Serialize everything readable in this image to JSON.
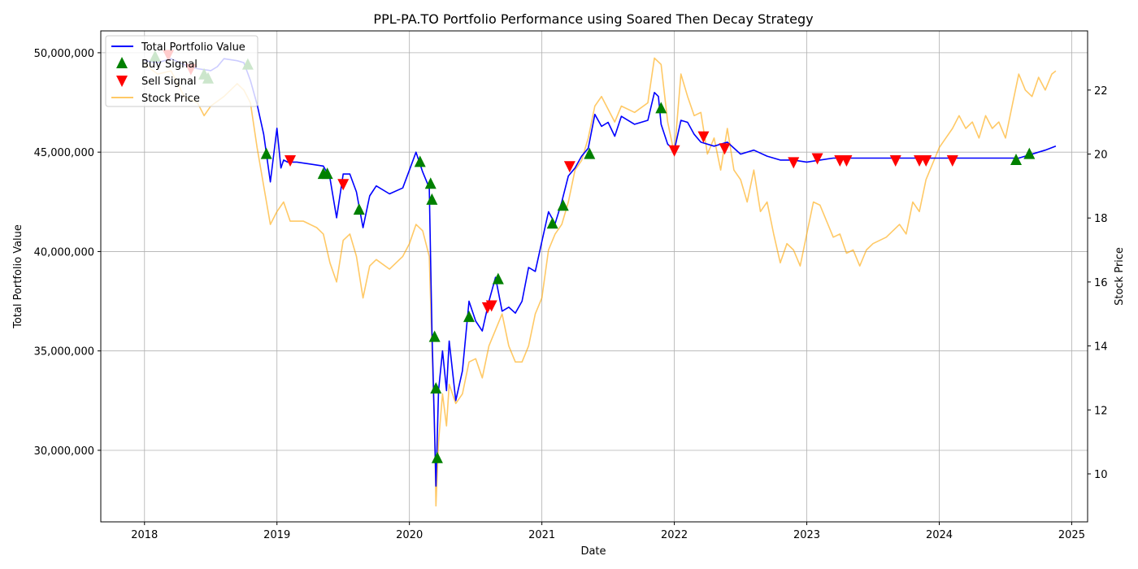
{
  "chart_data": {
    "type": "line",
    "title": "PPL-PA.TO Portfolio Performance using Soared Then Decay Strategy",
    "xlabel": "Date",
    "ylabel": "Total Portfolio Value",
    "ylabel_right": "Stock Price",
    "xlim": [
      2017.67,
      2025.12
    ],
    "ylim": [
      26400000,
      51100000
    ],
    "ylim_right": [
      8.5,
      23.85
    ],
    "grid": true,
    "legend_position": "upper-left",
    "x_ticks": [
      {
        "value": 2018,
        "label": "2018"
      },
      {
        "value": 2019,
        "label": "2019"
      },
      {
        "value": 2020,
        "label": "2020"
      },
      {
        "value": 2021,
        "label": "2021"
      },
      {
        "value": 2022,
        "label": "2022"
      },
      {
        "value": 2023,
        "label": "2023"
      },
      {
        "value": 2024,
        "label": "2024"
      },
      {
        "value": 2025,
        "label": "2025"
      }
    ],
    "y_ticks": [
      {
        "value": 30000000,
        "label": "30,000,000"
      },
      {
        "value": 35000000,
        "label": "35,000,000"
      },
      {
        "value": 40000000,
        "label": "40,000,000"
      },
      {
        "value": 45000000,
        "label": "45,000,000"
      },
      {
        "value": 50000000,
        "label": "50,000,000"
      }
    ],
    "y_ticks_right": [
      {
        "value": 10,
        "label": "10"
      },
      {
        "value": 12,
        "label": "12"
      },
      {
        "value": 14,
        "label": "14"
      },
      {
        "value": 16,
        "label": "16"
      },
      {
        "value": 18,
        "label": "18"
      },
      {
        "value": 20,
        "label": "20"
      },
      {
        "value": 22,
        "label": "22"
      }
    ],
    "series": [
      {
        "name": "Total Portfolio Value",
        "axis": "left",
        "color": "#0000ff",
        "x": [
          2018.0,
          2018.1,
          2018.2,
          2018.3,
          2018.4,
          2018.5,
          2018.55,
          2018.6,
          2018.7,
          2018.75,
          2018.8,
          2018.85,
          2018.9,
          2018.95,
          2019.0,
          2019.03,
          2019.05,
          2019.08,
          2019.15,
          2019.25,
          2019.35,
          2019.4,
          2019.45,
          2019.5,
          2019.55,
          2019.6,
          2019.65,
          2019.7,
          2019.75,
          2019.85,
          2019.95,
          2020.0,
          2020.05,
          2020.1,
          2020.15,
          2020.17,
          2020.19,
          2020.2,
          2020.22,
          2020.25,
          2020.28,
          2020.3,
          2020.35,
          2020.4,
          2020.45,
          2020.5,
          2020.55,
          2020.6,
          2020.65,
          2020.7,
          2020.75,
          2020.8,
          2020.85,
          2020.9,
          2020.95,
          2021.0,
          2021.05,
          2021.1,
          2021.15,
          2021.2,
          2021.25,
          2021.3,
          2021.35,
          2021.4,
          2021.45,
          2021.5,
          2021.55,
          2021.6,
          2021.7,
          2021.8,
          2021.85,
          2021.88,
          2021.9,
          2021.95,
          2022.0,
          2022.05,
          2022.1,
          2022.15,
          2022.2,
          2022.3,
          2022.4,
          2022.5,
          2022.6,
          2022.7,
          2022.8,
          2022.9,
          2023.0,
          2023.2,
          2023.4,
          2023.6,
          2023.8,
          2024.0,
          2024.2,
          2024.4,
          2024.6,
          2024.7,
          2024.8,
          2024.88
        ],
        "values": [
          49600000,
          49500000,
          49700000,
          49400000,
          49200000,
          49100000,
          49300000,
          49700000,
          49600000,
          49500000,
          48600000,
          47400000,
          45900000,
          43500000,
          46200000,
          44200000,
          44600000,
          44500000,
          44500000,
          44400000,
          44300000,
          43700000,
          41700000,
          43900000,
          43900000,
          43000000,
          41200000,
          42800000,
          43300000,
          42900000,
          43200000,
          44100000,
          45000000,
          44000000,
          43200000,
          36000000,
          31000000,
          28200000,
          33000000,
          35000000,
          33000000,
          35500000,
          32500000,
          34000000,
          37500000,
          36500000,
          36000000,
          37500000,
          38700000,
          37000000,
          37200000,
          36900000,
          37500000,
          39200000,
          39000000,
          40500000,
          42000000,
          41400000,
          42500000,
          43800000,
          44200000,
          44800000,
          45200000,
          46900000,
          46300000,
          46500000,
          45800000,
          46800000,
          46400000,
          46600000,
          48000000,
          47800000,
          46400000,
          45400000,
          45100000,
          46600000,
          46500000,
          45900000,
          45500000,
          45300000,
          45500000,
          44900000,
          45100000,
          44800000,
          44600000,
          44600000,
          44500000,
          44700000,
          44700000,
          44700000,
          44700000,
          44700000,
          44700000,
          44700000,
          44700000,
          44900000,
          45100000,
          45300000
        ]
      },
      {
        "name": "Stock Price",
        "axis": "right",
        "color": "#ffa500",
        "x": [
          2018.0,
          2018.1,
          2018.2,
          2018.3,
          2018.4,
          2018.45,
          2018.5,
          2018.6,
          2018.7,
          2018.75,
          2018.8,
          2018.85,
          2018.9,
          2018.95,
          2019.0,
          2019.05,
          2019.1,
          2019.2,
          2019.3,
          2019.35,
          2019.4,
          2019.45,
          2019.5,
          2019.55,
          2019.6,
          2019.65,
          2019.7,
          2019.75,
          2019.85,
          2019.95,
          2020.0,
          2020.05,
          2020.1,
          2020.15,
          2020.17,
          2020.19,
          2020.2,
          2020.22,
          2020.25,
          2020.28,
          2020.3,
          2020.35,
          2020.4,
          2020.45,
          2020.5,
          2020.55,
          2020.6,
          2020.65,
          2020.7,
          2020.75,
          2020.8,
          2020.85,
          2020.9,
          2020.95,
          2021.0,
          2021.05,
          2021.1,
          2021.15,
          2021.2,
          2021.25,
          2021.3,
          2021.35,
          2021.4,
          2021.45,
          2021.5,
          2021.55,
          2021.6,
          2021.7,
          2021.8,
          2021.85,
          2021.9,
          2021.95,
          2022.0,
          2022.05,
          2022.1,
          2022.15,
          2022.2,
          2022.25,
          2022.3,
          2022.35,
          2022.4,
          2022.45,
          2022.5,
          2022.55,
          2022.6,
          2022.65,
          2022.7,
          2022.75,
          2022.8,
          2022.85,
          2022.9,
          2022.95,
          2023.0,
          2023.05,
          2023.1,
          2023.2,
          2023.25,
          2023.3,
          2023.35,
          2023.4,
          2023.45,
          2023.5,
          2023.6,
          2023.7,
          2023.75,
          2023.8,
          2023.85,
          2023.9,
          2024.0,
          2024.05,
          2024.1,
          2024.15,
          2024.2,
          2024.25,
          2024.3,
          2024.35,
          2024.4,
          2024.45,
          2024.5,
          2024.55,
          2024.6,
          2024.65,
          2024.7,
          2024.75,
          2024.8,
          2024.85,
          2024.88
        ],
        "values": [
          22.8,
          22.5,
          22.6,
          21.8,
          21.6,
          21.2,
          21.5,
          21.8,
          22.2,
          22.0,
          21.6,
          20.2,
          19.0,
          17.8,
          18.2,
          18.5,
          17.9,
          17.9,
          17.7,
          17.5,
          16.6,
          16.0,
          17.3,
          17.5,
          16.8,
          15.5,
          16.5,
          16.7,
          16.4,
          16.8,
          17.2,
          17.8,
          17.6,
          16.8,
          14.0,
          11.5,
          9.0,
          11.0,
          12.5,
          11.5,
          12.8,
          12.2,
          12.5,
          13.5,
          13.6,
          13.0,
          14.0,
          14.5,
          15.0,
          14.0,
          13.5,
          13.5,
          14.0,
          15.0,
          15.5,
          17.0,
          17.5,
          17.8,
          18.5,
          19.5,
          19.8,
          20.5,
          21.5,
          21.8,
          21.4,
          21.0,
          21.5,
          21.3,
          21.6,
          23.0,
          22.8,
          21.0,
          20.0,
          22.5,
          21.8,
          21.2,
          21.3,
          20.0,
          20.5,
          19.5,
          20.8,
          19.5,
          19.2,
          18.5,
          19.5,
          18.2,
          18.5,
          17.5,
          16.6,
          17.2,
          17.0,
          16.5,
          17.5,
          18.5,
          18.4,
          17.4,
          17.5,
          16.9,
          17.0,
          16.5,
          17.0,
          17.2,
          17.4,
          17.8,
          17.5,
          18.5,
          18.2,
          19.2,
          20.2,
          20.5,
          20.8,
          21.2,
          20.8,
          21.0,
          20.5,
          21.2,
          20.8,
          21.0,
          20.5,
          21.5,
          22.5,
          22.0,
          21.8,
          22.4,
          22.0,
          22.5,
          22.6
        ]
      }
    ],
    "markers": [
      {
        "name": "Buy Signal",
        "shape": "triangle-up",
        "color": "#008000",
        "x": [
          2018.08,
          2018.45,
          2018.48,
          2018.78,
          2018.92,
          2019.35,
          2019.38,
          2019.62,
          2020.08,
          2020.16,
          2020.17,
          2020.19,
          2020.2,
          2020.21,
          2020.45,
          2020.67,
          2021.08,
          2021.16,
          2021.36,
          2021.9,
          2024.58,
          2024.68
        ],
        "values": [
          49800000,
          48900000,
          48700000,
          49400000,
          44900000,
          43900000,
          43900000,
          42100000,
          44500000,
          43400000,
          42600000,
          35700000,
          33100000,
          29600000,
          36700000,
          38600000,
          41400000,
          42300000,
          44900000,
          47200000,
          44600000,
          44900000
        ]
      },
      {
        "name": "Sell Signal",
        "shape": "triangle-down",
        "color": "#ff0000",
        "x": [
          2018.18,
          2018.35,
          2019.1,
          2019.5,
          2020.59,
          2020.62,
          2021.21,
          2022.0,
          2022.22,
          2022.38,
          2022.9,
          2023.08,
          2023.25,
          2023.3,
          2023.67,
          2023.85,
          2023.9,
          2024.1
        ],
        "values": [
          49900000,
          49200000,
          44600000,
          43400000,
          37200000,
          37300000,
          44300000,
          45100000,
          45800000,
          45200000,
          44500000,
          44700000,
          44600000,
          44600000,
          44600000,
          44600000,
          44600000,
          44600000
        ]
      }
    ],
    "legend": [
      "Total Portfolio Value",
      "Buy Signal",
      "Sell Signal",
      "Stock Price"
    ]
  }
}
